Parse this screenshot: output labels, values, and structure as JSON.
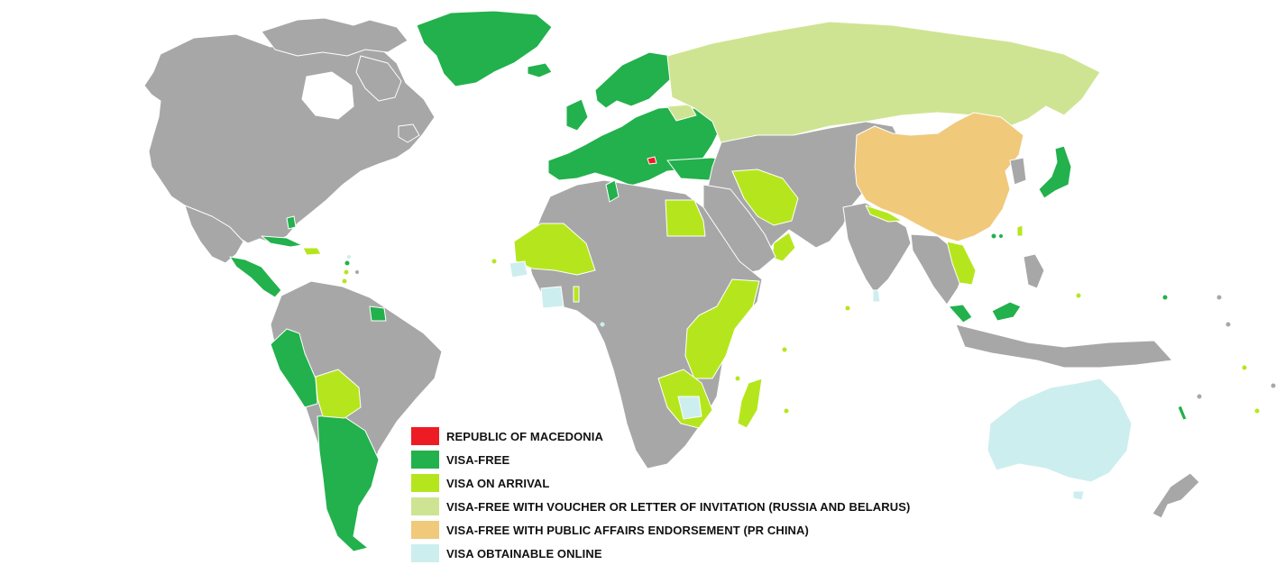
{
  "colors": {
    "ocean": "#ffffff",
    "no_data": "#a7a7a7",
    "border": "#ffffff",
    "macedonia": "#ed1c24",
    "visa_free": "#22b14c",
    "visa_on_arrival": "#b5e61d",
    "visa_free_voucher": "#cfe492",
    "visa_free_endorsement": "#f0c97b",
    "visa_online": "#cdeeee"
  },
  "legend": {
    "items": [
      {
        "label": "REPUBLIC OF MACEDONIA",
        "color": "#ed1c24"
      },
      {
        "label": "VISA-FREE",
        "color": "#22b14c"
      },
      {
        "label": "VISA ON ARRIVAL",
        "color": "#b5e61d"
      },
      {
        "label": "VISA-FREE WITH VOUCHER OR LETTER OF INVITATION (RUSSIA AND BELARUS)",
        "color": "#cfe492"
      },
      {
        "label": "VISA-FREE WITH PUBLIC AFFAIRS ENDORSEMENT (PR CHINA)",
        "color": "#f0c97b"
      },
      {
        "label": "VISA OBTAINABLE ONLINE",
        "color": "#cdeeee"
      }
    ]
  }
}
